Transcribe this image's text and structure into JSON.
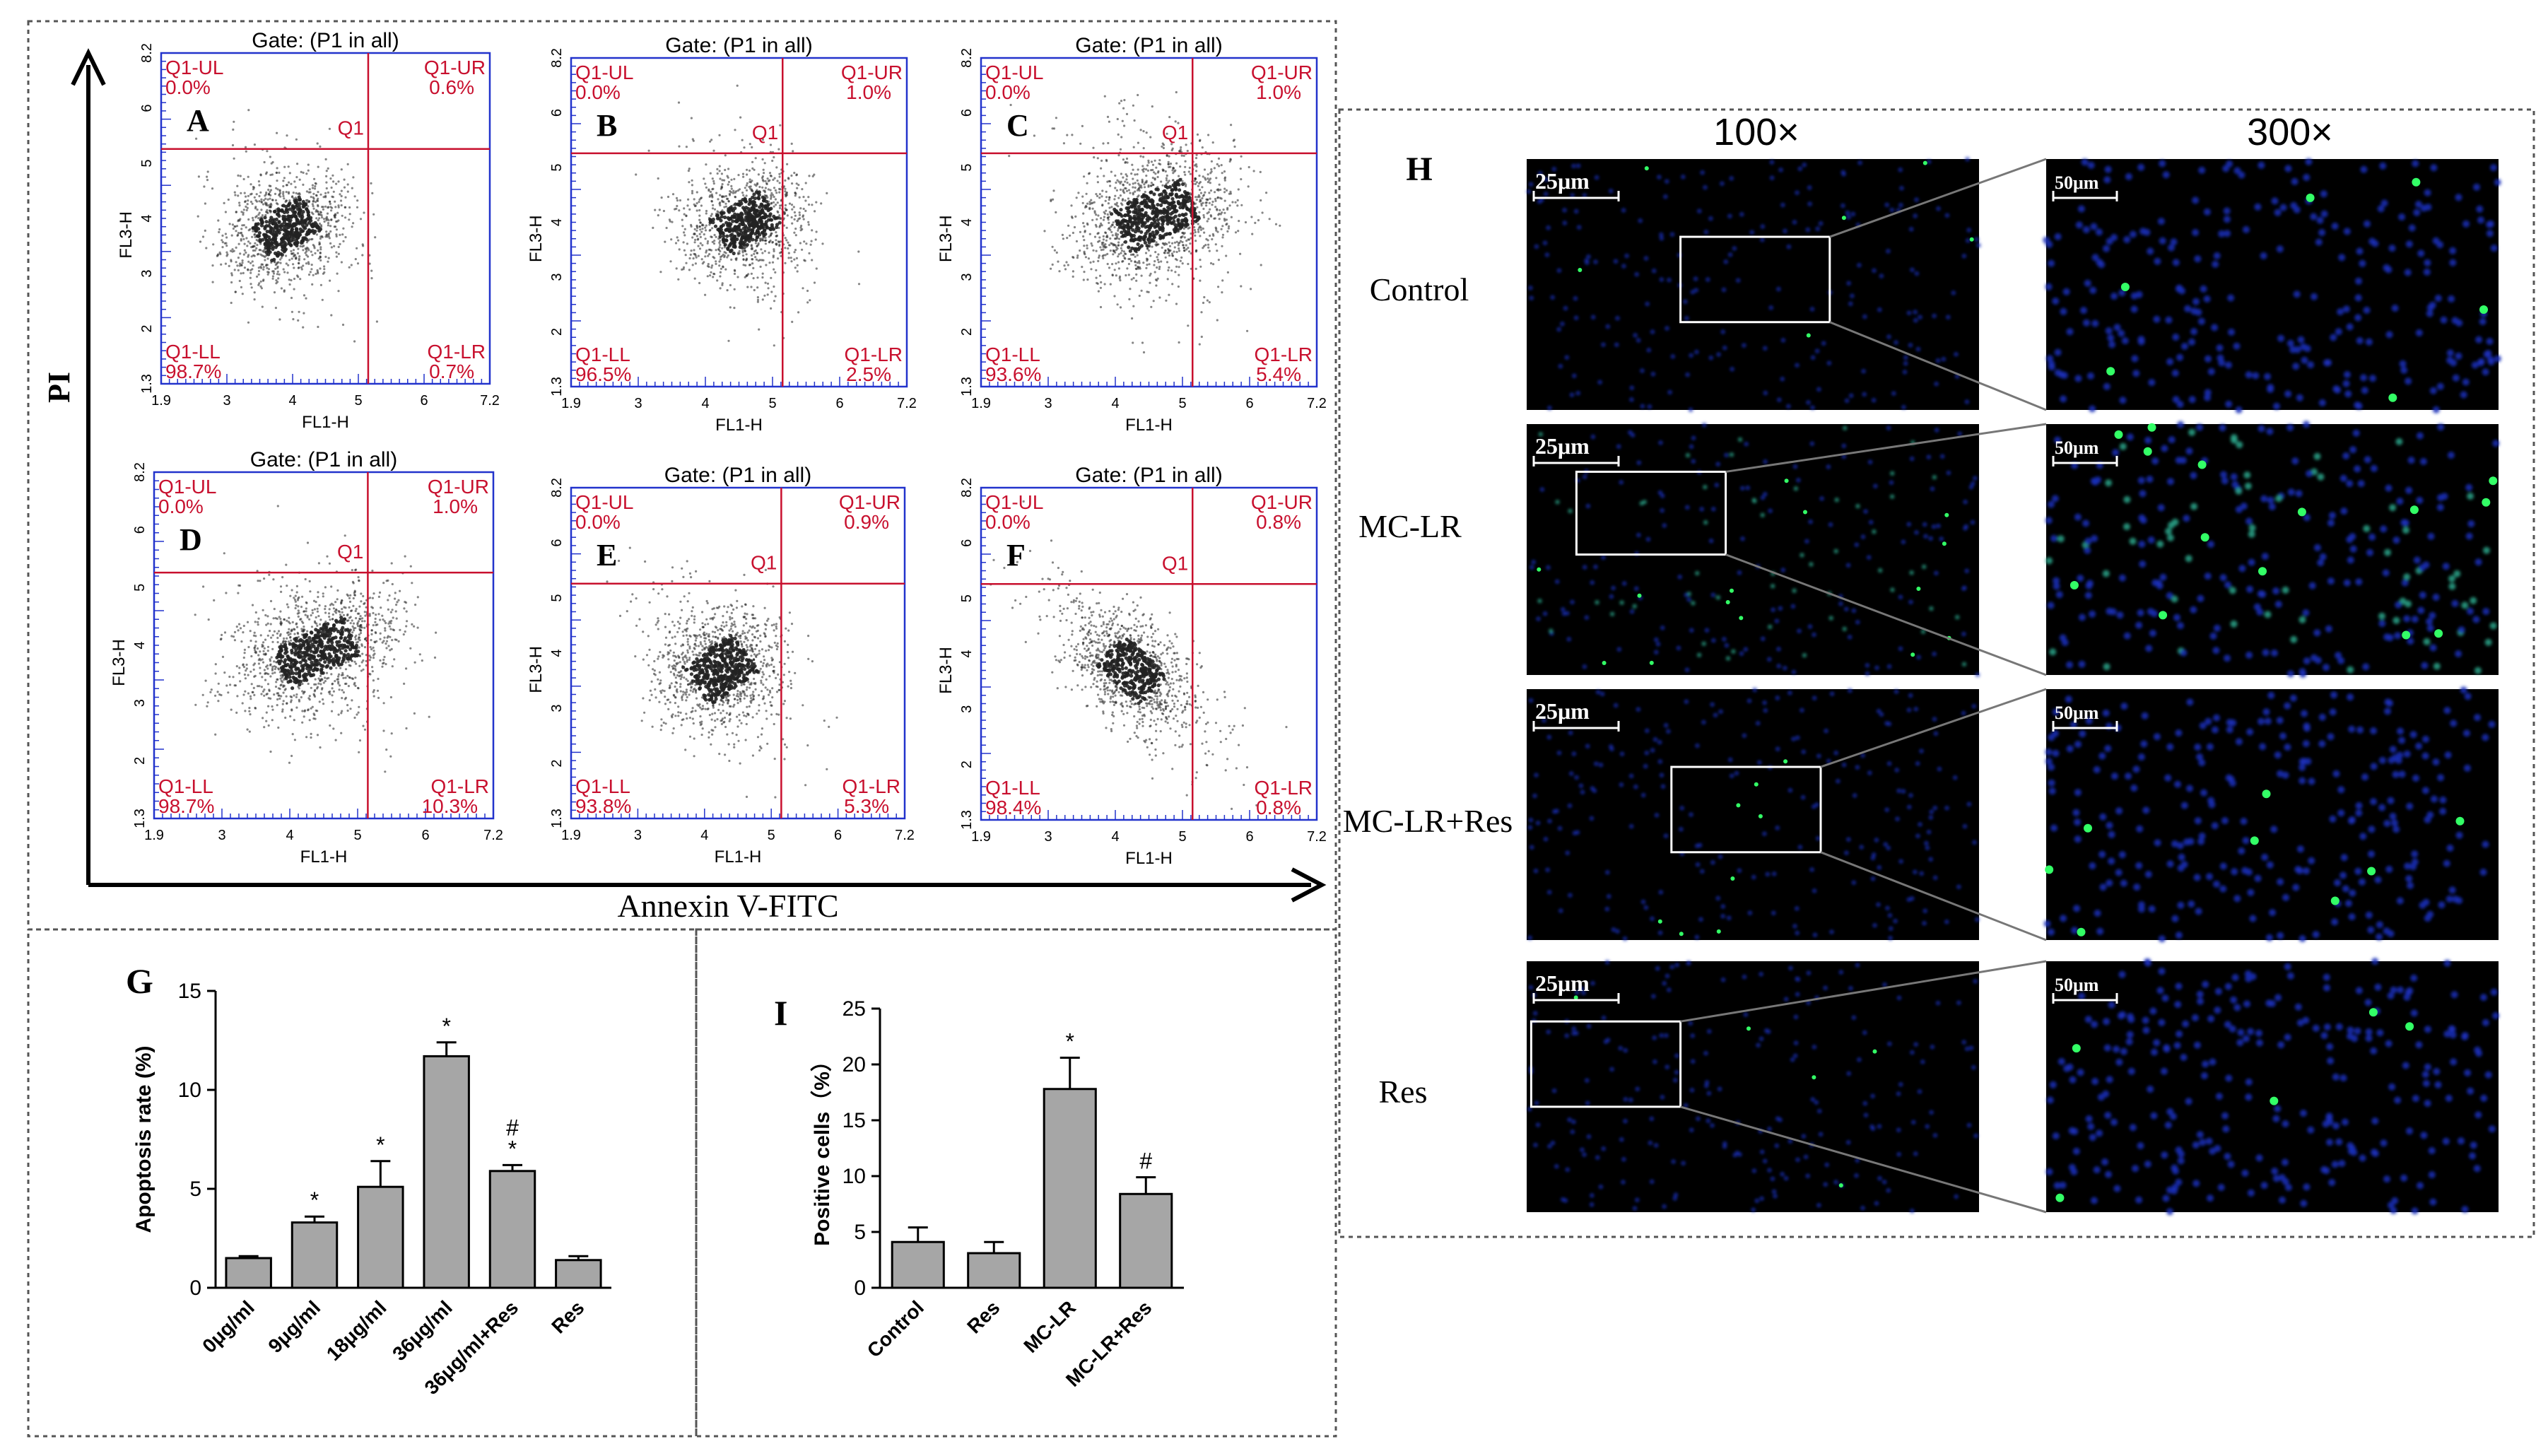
{
  "flow_panels": [
    {
      "letter": "A",
      "gate": "Gate: (P1 in all)",
      "ul": "0.0%",
      "ur": "0.6%",
      "ll": "98.7%",
      "lr": "0.7%"
    },
    {
      "letter": "B",
      "gate": "Gate: (P1 in all)",
      "ul": "0.0%",
      "ur": "1.0%",
      "ll": "96.5%",
      "lr": "2.5%"
    },
    {
      "letter": "C",
      "gate": "Gate: (P1 in all)",
      "ul": "0.0%",
      "ur": "1.0%",
      "ll": "93.6%",
      "lr": "5.4%"
    },
    {
      "letter": "D",
      "gate": "Gate: (P1 in all)",
      "ul": "0.0%",
      "ur": "1.0%",
      "ll": "98.7%",
      "lr": "10.3%"
    },
    {
      "letter": "E",
      "gate": "Gate: (P1 in all)",
      "ul": "0.0%",
      "ur": "0.9%",
      "ll": "93.8%",
      "lr": "5.3%"
    },
    {
      "letter": "F",
      "gate": "Gate: (P1 in all)",
      "ul": "0.0%",
      "ur": "0.8%",
      "ll": "98.4%",
      "lr": "0.8%"
    }
  ],
  "flow_labels": {
    "ul": "Q1-UL",
    "ur": "Q1-UR",
    "ll": "Q1-LL",
    "lr": "Q1-LR",
    "q": "Q1",
    "xaxis": "FL1-H",
    "yaxis": "FL3-H",
    "xticks": [
      "1.9",
      "3",
      "4",
      "5",
      "6",
      "7.2"
    ],
    "yticks": [
      "1.3",
      "2",
      "3",
      "4",
      "5",
      "6",
      "8.2"
    ],
    "pi": "PI",
    "annexin": "Annexin V-FITC"
  },
  "tunel": {
    "letter": "H",
    "mag_low": "100×",
    "mag_high": "300×",
    "rows": [
      "Control",
      "MC-LR",
      "MC-LR+Res",
      "Res"
    ],
    "scale_low": "25μm",
    "scale_high": "50μm"
  },
  "chart_data": [
    {
      "panel": "G",
      "type": "bar",
      "ylabel": "Apoptosis rate (%)",
      "ylim": [
        0,
        15
      ],
      "yticks": [
        "0",
        "5",
        "10",
        "15"
      ],
      "categories": [
        "0μg/ml",
        "9μg/ml",
        "18μg/ml",
        "36μg/ml",
        "36μg/ml+Res",
        "Res"
      ],
      "values": [
        1.5,
        3.3,
        5.1,
        11.7,
        5.9,
        1.4
      ],
      "errors": [
        0.1,
        0.3,
        1.3,
        0.7,
        0.3,
        0.2
      ],
      "marks": [
        "",
        "*",
        "*",
        "*",
        "#\n*",
        ""
      ]
    },
    {
      "panel": "I",
      "type": "bar",
      "ylabel": "Positive cells（%）",
      "ylim": [
        0,
        25
      ],
      "yticks": [
        "0",
        "5",
        "10",
        "15",
        "20",
        "25"
      ],
      "categories": [
        "Control",
        "Res",
        "MC-LR",
        "MC-LR+Res"
      ],
      "values": [
        4.1,
        3.1,
        17.8,
        8.4
      ],
      "errors": [
        1.3,
        1.0,
        2.8,
        1.5
      ],
      "marks": [
        "",
        "",
        "*",
        "#"
      ]
    }
  ]
}
